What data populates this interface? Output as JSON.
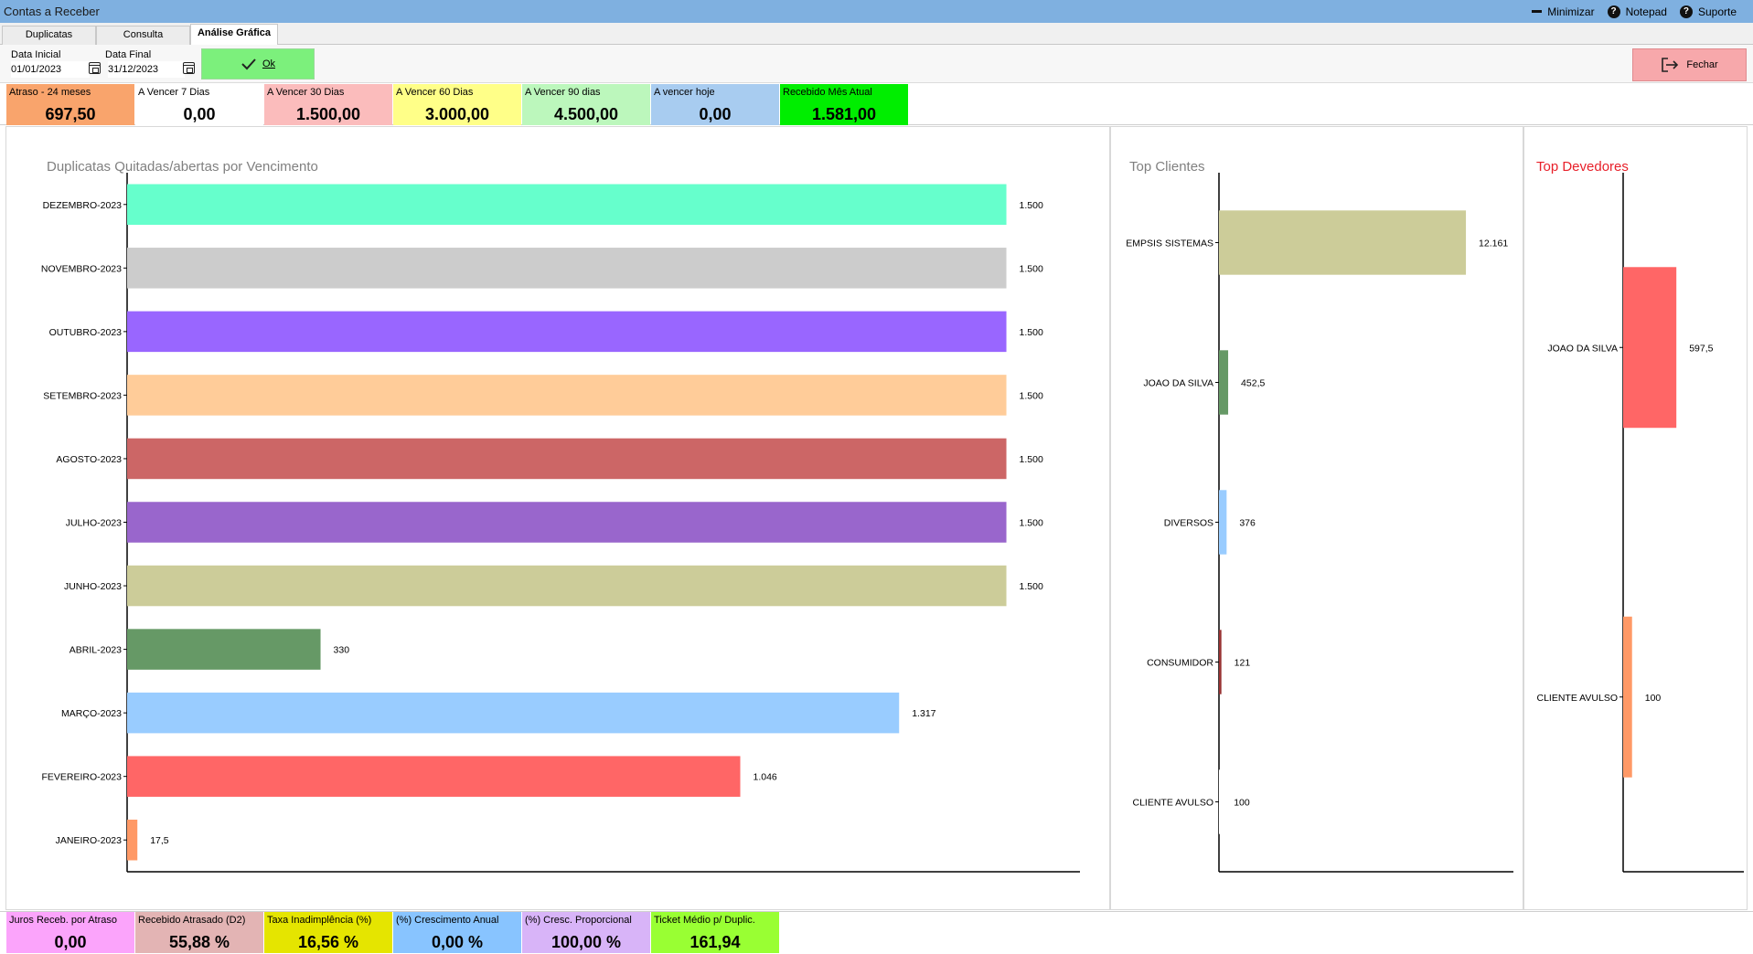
{
  "window": {
    "title": "Contas a Receber",
    "actions": [
      "Minimizar",
      "Notepad",
      "Suporte"
    ]
  },
  "tabs": [
    {
      "label": "Duplicatas",
      "active": false
    },
    {
      "label": "Consulta",
      "active": false
    },
    {
      "label": "Análise Gráfica",
      "active": true
    }
  ],
  "filter": {
    "data_inicial_label": "Data Inicial",
    "data_inicial_value": "01/01/2023",
    "data_final_label": "Data Final",
    "data_final_value": "31/12/2023",
    "ok_label": "Ok",
    "fechar_label": "Fechar"
  },
  "summary_cards": [
    {
      "label": "Atraso - 24 meses",
      "value": "697,50",
      "color": "#f9a46c"
    },
    {
      "label": "A Vencer 7 Dias",
      "value": "0,00",
      "color": "#ffffff"
    },
    {
      "label": "A Vencer 30 Dias",
      "value": "1.500,00",
      "color": "#fbbcbc"
    },
    {
      "label": "A Vencer 60 Dias",
      "value": "3.000,00",
      "color": "#ffff88"
    },
    {
      "label": "A Vencer 90 dias",
      "value": "4.500,00",
      "color": "#bcf7bc"
    },
    {
      "label": "A vencer hoje",
      "value": "0,00",
      "color": "#a8ccf0"
    },
    {
      "label": "Recebido Mês Atual",
      "value": "1.581,00",
      "color": "#00ee00"
    }
  ],
  "bottom_cards": [
    {
      "label": "Juros Receb. por Atraso",
      "value": "0,00",
      "color": "#fba4fb"
    },
    {
      "label": "Recebido Atrasado (D2)",
      "value": "55,88 %",
      "color": "#e3b4b4"
    },
    {
      "label": "Taxa Inadimplência (%)",
      "value": "16,56 %",
      "color": "#e5e500"
    },
    {
      "label": "(%) Crescimento Anual",
      "value": "0,00 %",
      "color": "#88c4ff"
    },
    {
      "label": "(%) Cresc. Proporcional",
      "value": "100,00 %",
      "color": "#d8b4f8"
    },
    {
      "label": "Ticket Médio p/ Duplic.",
      "value": "161,94",
      "color": "#99ff33"
    }
  ],
  "chart_data": [
    {
      "type": "bar",
      "orientation": "horizontal",
      "title": "Duplicatas Quitadas/abertas por Vencimento",
      "categories": [
        "DEZEMBRO-2023",
        "NOVEMBRO-2023",
        "OUTUBRO-2023",
        "SETEMBRO-2023",
        "AGOSTO-2023",
        "JULHO-2023",
        "JUNHO-2023",
        "ABRIL-2023",
        "MARÇO-2023",
        "FEVEREIRO-2023",
        "JANEIRO-2023"
      ],
      "values": [
        1500,
        1500,
        1500,
        1500,
        1500,
        1500,
        1500,
        330,
        1317,
        1046,
        17.5
      ],
      "data_labels": [
        "1.500",
        "1.500",
        "1.500",
        "1.500",
        "1.500",
        "1.500",
        "1.500",
        "330",
        "1.317",
        "1.046",
        "17,5"
      ],
      "colors": [
        "#66ffcc",
        "#cccccc",
        "#9966ff",
        "#ffcc99",
        "#cc6666",
        "#9966cc",
        "#cccc99",
        "#669966",
        "#99ccff",
        "#ff6666",
        "#ff9966"
      ],
      "xlim": [
        0,
        1560
      ]
    },
    {
      "type": "bar",
      "orientation": "horizontal",
      "title": "Top Clientes",
      "categories": [
        "EMPSIS SISTEMAS",
        "JOAO DA SILVA",
        "DIVERSOS",
        "CONSUMIDOR",
        "CLIENTE AVULSO"
      ],
      "values": [
        12161,
        452.5,
        376,
        121,
        100
      ],
      "data_labels": [
        "12.161",
        "452,5",
        "376",
        "121",
        "100"
      ],
      "colors": [
        "#cccc99",
        "#669966",
        "#99ccff",
        "#993333",
        "#ffffff"
      ],
      "xlim": [
        0,
        14500
      ]
    },
    {
      "type": "bar",
      "orientation": "horizontal",
      "title": "Top Devedores",
      "categories": [
        "JOAO DA SILVA",
        "CLIENTE AVULSO"
      ],
      "values": [
        597.5,
        100
      ],
      "data_labels": [
        "597,5",
        "100"
      ],
      "colors": [
        "#ff6666",
        "#ff9966"
      ],
      "xlim": [
        0,
        1150
      ]
    }
  ]
}
